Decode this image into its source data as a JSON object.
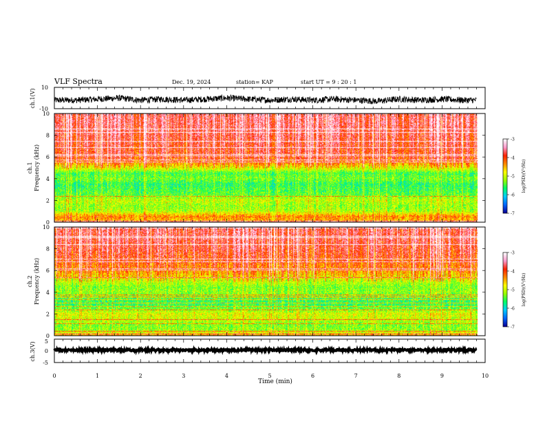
{
  "header": {
    "title": "VLF Spectra",
    "date": "Dec. 19, 2024",
    "station": "station= KAP",
    "start": "start  UT =   9 : 20 : 1"
  },
  "colors": {
    "colormap": [
      "#0a0096",
      "#0066ff",
      "#00ccff",
      "#00ff66",
      "#99ff00",
      "#ffff00",
      "#ff8800",
      "#ff2200",
      "#ff99cc",
      "#ffffff"
    ]
  },
  "chart_data": [
    {
      "id": "ch1-waveform",
      "type": "line",
      "ylabel": "ch.1(V)",
      "ylim": [
        -10,
        10
      ],
      "yticks": [
        "10",
        "-10"
      ],
      "x_min": [
        0,
        0.5,
        1,
        1.5,
        2,
        2.5,
        3,
        3.5,
        4,
        4.5,
        5,
        5.5,
        6,
        6.5,
        7,
        7.5,
        8,
        8.5,
        9,
        9.5,
        9.8
      ],
      "y_level": [
        -2,
        -2,
        -1,
        0,
        -2,
        -1,
        -2,
        -1,
        0,
        -1,
        -2,
        -1,
        -2,
        -1,
        -2,
        -3,
        -1,
        -2,
        -1,
        -2,
        -2
      ],
      "y_amplitude": 3
    },
    {
      "id": "ch1-spectrogram",
      "type": "heatmap",
      "ylabel_lines": [
        "ch.1",
        "Frequency  (kHz)"
      ],
      "ylim": [
        0,
        10
      ],
      "yticks": [
        "0",
        "2",
        "4",
        "6",
        "8",
        "10"
      ],
      "colorbar_label": "log(PSD)(V²/Hz)",
      "colorbar_range": [
        -7,
        -3
      ],
      "colorbar_ticks": [
        "-3",
        "-4",
        "-5",
        "-6",
        "-7"
      ],
      "band_freq_khz": [
        0,
        0.2,
        0.5,
        1.0,
        1.5,
        2.0,
        2.5,
        3.0,
        3.5,
        4.0,
        4.5,
        5.0,
        5.5,
        6.0,
        7.0,
        8.0,
        9.0,
        10.0
      ],
      "band_level": [
        -4.0,
        -4.5,
        -4.3,
        -5.1,
        -5.2,
        -5.0,
        -5.4,
        -5.5,
        -5.6,
        -5.3,
        -5.5,
        -4.8,
        -4.2,
        -3.9,
        -3.8,
        -3.7,
        -3.6,
        -3.6
      ]
    },
    {
      "id": "ch2-spectrogram",
      "type": "heatmap",
      "ylabel_lines": [
        "ch.2",
        "Frequency  (kHz)"
      ],
      "ylim": [
        0,
        10
      ],
      "yticks": [
        "0",
        "2",
        "4",
        "6",
        "8",
        "10"
      ],
      "colorbar_label": "log(PSD)(V²/Hz)",
      "colorbar_range": [
        -7,
        -3
      ],
      "colorbar_ticks": [
        "-3",
        "-4",
        "-5",
        "-6",
        "-7"
      ],
      "band_freq_khz": [
        0,
        0.2,
        0.5,
        1.0,
        1.5,
        2.0,
        2.5,
        3.0,
        3.5,
        4.0,
        4.5,
        5.0,
        5.5,
        6.0,
        7.0,
        8.0,
        9.0,
        10.0
      ],
      "band_level": [
        -4.5,
        -4.8,
        -5.2,
        -5.3,
        -5.0,
        -4.9,
        -5.4,
        -5.6,
        -5.5,
        -5.2,
        -5.3,
        -5.0,
        -4.6,
        -4.3,
        -4.0,
        -3.8,
        -3.7,
        -3.7
      ]
    },
    {
      "id": "ch3-waveform",
      "type": "line",
      "ylabel": "ch.3(V)",
      "ylim": [
        -5,
        5
      ],
      "yticks": [
        "5",
        "0",
        "-5"
      ],
      "x_min": [
        0,
        9.8
      ],
      "y_level": [
        0.3,
        0.3
      ],
      "y_amplitude": 0.4
    }
  ],
  "x_axis": {
    "label": "Time  (min)",
    "xlim": [
      0,
      10
    ],
    "ticks": [
      "0",
      "1",
      "2",
      "3",
      "4",
      "5",
      "6",
      "7",
      "8",
      "9",
      "10"
    ]
  }
}
